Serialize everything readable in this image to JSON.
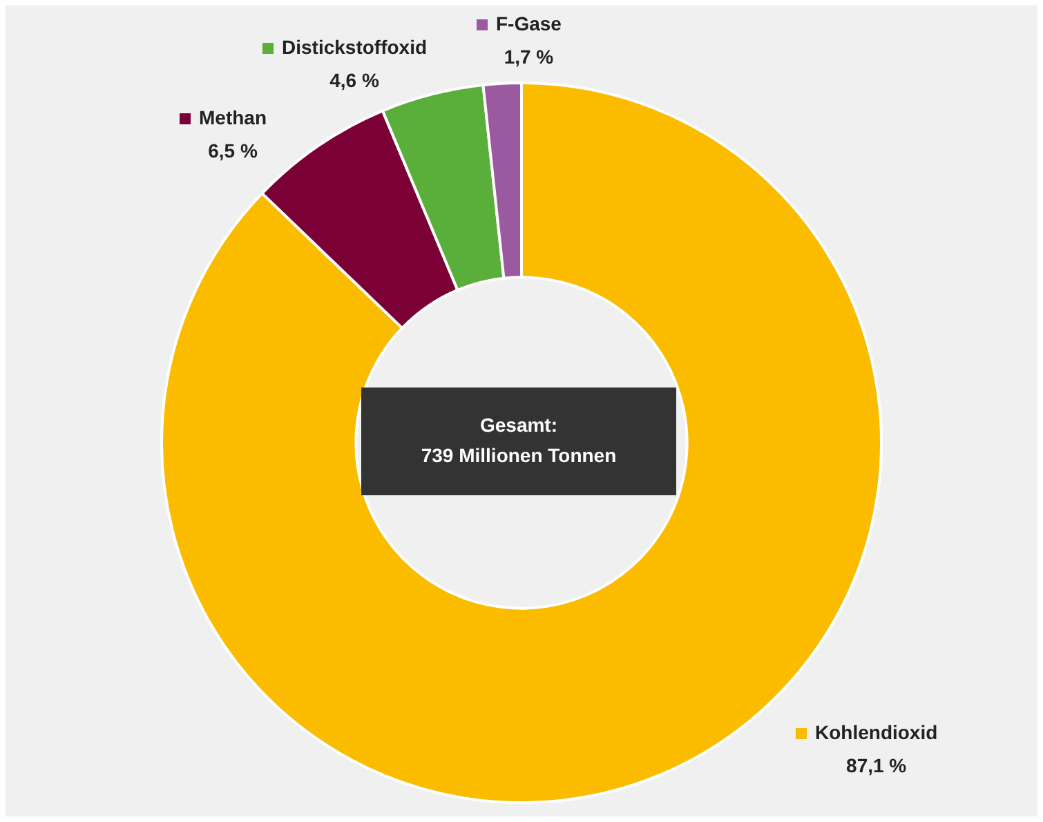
{
  "chart_data": {
    "type": "donut",
    "categories": [
      "Kohlendioxid",
      "Methan",
      "Distickstoffoxid",
      "F-Gase"
    ],
    "values": [
      87.1,
      6.5,
      4.6,
      1.7
    ],
    "value_labels": [
      "87,1 %",
      "6,5 %",
      "4,6 %",
      "1,7 %"
    ],
    "colors": [
      "#fbbc00",
      "#7b0036",
      "#5aae3a",
      "#9b5aa0"
    ],
    "annotations": [
      "Gesamt:\n739 Millionen Tonnen"
    ],
    "legend": "top right"
  }
}
